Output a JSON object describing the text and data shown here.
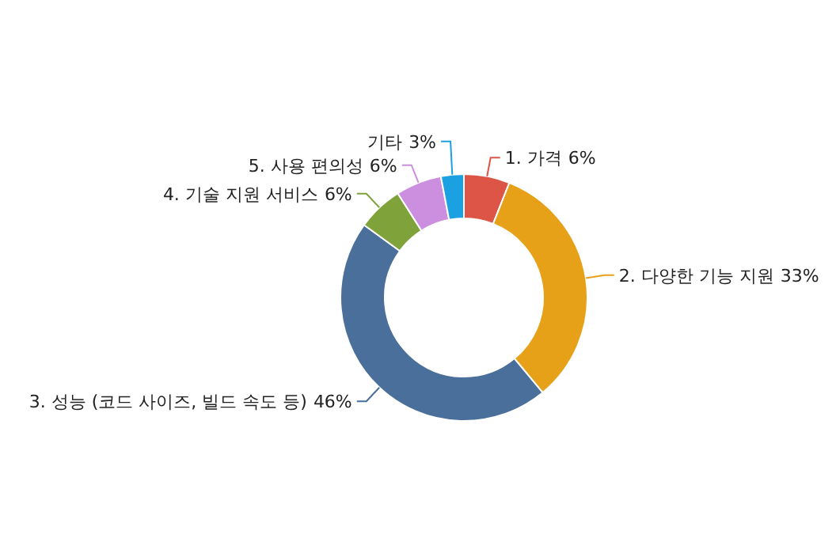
{
  "chart_data": {
    "type": "donut",
    "categories": [
      "1. 가격",
      "2. 다양한 기능 지원",
      "3. 성능 (코드 사이즈, 빌드 속도 등)",
      "4. 기술 지원 서비스",
      "5. 사용 편의성",
      "기타"
    ],
    "values": [
      6,
      33,
      46,
      6,
      6,
      3
    ],
    "value_labels": [
      "6%",
      "33%",
      "46%",
      "6%",
      "6%",
      "3%"
    ],
    "colors": [
      "#dc5546",
      "#e6a118",
      "#4a6f9a",
      "#7fa33a",
      "#cc8fe0",
      "#1ba1e2"
    ]
  }
}
